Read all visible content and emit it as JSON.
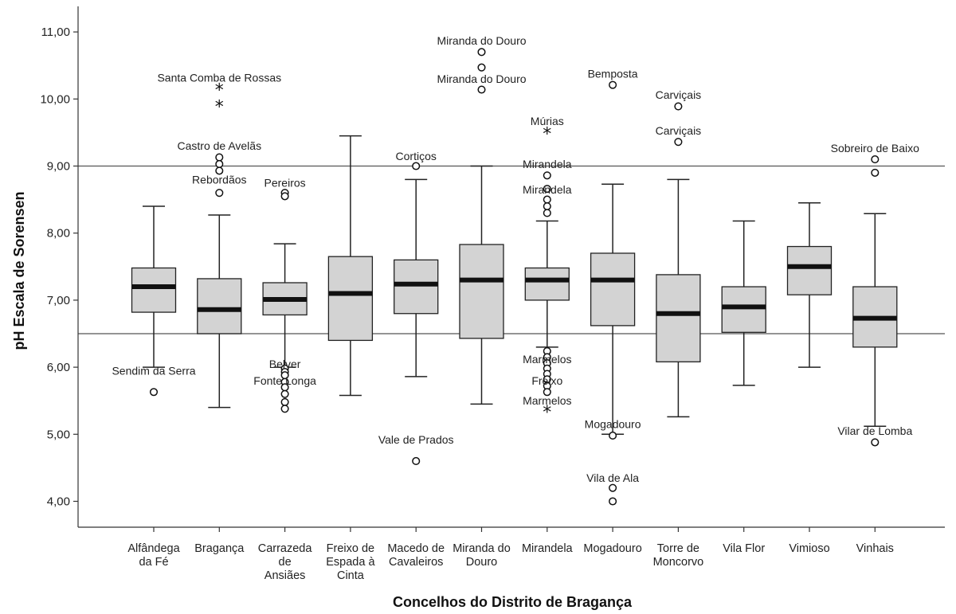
{
  "chart_data": {
    "type": "boxplot",
    "xlabel": "Concelhos do Distrito de Bragança",
    "ylabel": "pH Escala de Sorensen",
    "ylim": [
      3.5,
      11.4
    ],
    "yticks": [
      "4,00",
      "5,00",
      "6,00",
      "7,00",
      "8,00",
      "9,00",
      "10,00",
      "11,00"
    ],
    "reference_lines": [
      6.5,
      9.0
    ],
    "grid": false,
    "categories": [
      [
        "Alfândega",
        "da Fé"
      ],
      [
        "Bragança"
      ],
      [
        "Carrazeda",
        "de",
        "Ansiães"
      ],
      [
        "Freixo de",
        "Espada à",
        "Cinta"
      ],
      [
        "Macedo de",
        "Cavaleiros"
      ],
      [
        "Miranda do",
        "Douro"
      ],
      [
        "Mirandela"
      ],
      [
        "Mogadouro"
      ],
      [
        "Torre de",
        "Moncorvo"
      ],
      [
        "Vila Flor"
      ],
      [
        "Vimioso"
      ],
      [
        "Vinhais"
      ]
    ],
    "boxes": [
      {
        "min": 6.0,
        "q1": 6.82,
        "median": 7.2,
        "q3": 7.48,
        "max": 8.4
      },
      {
        "min": 5.4,
        "q1": 6.5,
        "median": 6.86,
        "q3": 7.32,
        "max": 8.27
      },
      {
        "min": 6.0,
        "q1": 6.78,
        "median": 7.01,
        "q3": 7.26,
        "max": 7.84
      },
      {
        "min": 5.58,
        "q1": 6.4,
        "median": 7.1,
        "q3": 7.65,
        "max": 9.45
      },
      {
        "min": 5.86,
        "q1": 6.8,
        "median": 7.24,
        "q3": 7.6,
        "max": 8.8
      },
      {
        "min": 5.45,
        "q1": 6.43,
        "median": 7.3,
        "q3": 7.83,
        "max": 9.0
      },
      {
        "min": 6.3,
        "q1": 7.0,
        "median": 7.3,
        "q3": 7.48,
        "max": 8.18
      },
      {
        "min": 5.0,
        "q1": 6.62,
        "median": 7.3,
        "q3": 7.7,
        "max": 8.73
      },
      {
        "min": 5.26,
        "q1": 6.08,
        "median": 6.8,
        "q3": 7.38,
        "max": 8.8
      },
      {
        "min": 5.73,
        "q1": 6.52,
        "median": 6.9,
        "q3": 7.2,
        "max": 8.18
      },
      {
        "min": 6.0,
        "q1": 7.08,
        "median": 7.5,
        "q3": 7.8,
        "max": 8.45
      },
      {
        "min": 5.12,
        "q1": 6.3,
        "median": 6.73,
        "q3": 7.2,
        "max": 8.29
      }
    ],
    "outliers": [
      {
        "cat": 0,
        "v": 5.63,
        "m": "o"
      },
      {
        "cat": 1,
        "v": 10.15,
        "m": "*"
      },
      {
        "cat": 1,
        "v": 9.9,
        "m": "*"
      },
      {
        "cat": 1,
        "v": 9.13,
        "m": "o"
      },
      {
        "cat": 1,
        "v": 9.03,
        "m": "o"
      },
      {
        "cat": 1,
        "v": 8.93,
        "m": "o"
      },
      {
        "cat": 1,
        "v": 8.6,
        "m": "o"
      },
      {
        "cat": 2,
        "v": 8.6,
        "m": "o"
      },
      {
        "cat": 2,
        "v": 8.55,
        "m": "o"
      },
      {
        "cat": 2,
        "v": 5.98,
        "m": "o"
      },
      {
        "cat": 2,
        "v": 5.93,
        "m": "o"
      },
      {
        "cat": 2,
        "v": 5.88,
        "m": "o"
      },
      {
        "cat": 2,
        "v": 5.78,
        "m": "o"
      },
      {
        "cat": 2,
        "v": 5.7,
        "m": "o"
      },
      {
        "cat": 2,
        "v": 5.6,
        "m": "o"
      },
      {
        "cat": 2,
        "v": 5.48,
        "m": "o"
      },
      {
        "cat": 2,
        "v": 5.38,
        "m": "o"
      },
      {
        "cat": 4,
        "v": 9.0,
        "m": "o"
      },
      {
        "cat": 4,
        "v": 4.6,
        "m": "o"
      },
      {
        "cat": 5,
        "v": 10.7,
        "m": "o"
      },
      {
        "cat": 5,
        "v": 10.47,
        "m": "o"
      },
      {
        "cat": 5,
        "v": 10.14,
        "m": "o"
      },
      {
        "cat": 6,
        "v": 9.5,
        "m": "*"
      },
      {
        "cat": 6,
        "v": 8.86,
        "m": "o"
      },
      {
        "cat": 6,
        "v": 8.66,
        "m": "o"
      },
      {
        "cat": 6,
        "v": 8.5,
        "m": "o"
      },
      {
        "cat": 6,
        "v": 8.4,
        "m": "o"
      },
      {
        "cat": 6,
        "v": 8.3,
        "m": "o"
      },
      {
        "cat": 6,
        "v": 6.24,
        "m": "o"
      },
      {
        "cat": 6,
        "v": 6.15,
        "m": "o"
      },
      {
        "cat": 6,
        "v": 6.06,
        "m": "o"
      },
      {
        "cat": 6,
        "v": 5.98,
        "m": "o"
      },
      {
        "cat": 6,
        "v": 5.9,
        "m": "o"
      },
      {
        "cat": 6,
        "v": 5.82,
        "m": "o"
      },
      {
        "cat": 6,
        "v": 5.72,
        "m": "o"
      },
      {
        "cat": 6,
        "v": 5.63,
        "m": "o"
      },
      {
        "cat": 6,
        "v": 5.35,
        "m": "*"
      },
      {
        "cat": 7,
        "v": 10.21,
        "m": "o"
      },
      {
        "cat": 7,
        "v": 4.98,
        "m": "o"
      },
      {
        "cat": 7,
        "v": 4.2,
        "m": "o"
      },
      {
        "cat": 7,
        "v": 4.0,
        "m": "o"
      },
      {
        "cat": 8,
        "v": 9.89,
        "m": "o"
      },
      {
        "cat": 8,
        "v": 9.36,
        "m": "o"
      },
      {
        "cat": 11,
        "v": 9.1,
        "m": "o"
      },
      {
        "cat": 11,
        "v": 8.9,
        "m": "o"
      },
      {
        "cat": 11,
        "v": 4.88,
        "m": "o"
      }
    ],
    "outlier_labels": [
      {
        "cat": 0,
        "v": 5.95,
        "text": "Sendim da Serra"
      },
      {
        "cat": 1,
        "v": 10.32,
        "text": "Santa Comba de Rossas"
      },
      {
        "cat": 1,
        "v": 9.3,
        "text": "Castro de Avelãs"
      },
      {
        "cat": 1,
        "v": 8.8,
        "text": "Rebordãos"
      },
      {
        "cat": 2,
        "v": 8.75,
        "text": "Pereiros"
      },
      {
        "cat": 2,
        "v": 6.05,
        "text": "Belver"
      },
      {
        "cat": 2,
        "v": 5.8,
        "text": "Fonte Longa"
      },
      {
        "cat": 4,
        "v": 9.15,
        "text": "Cortiços"
      },
      {
        "cat": 4,
        "v": 4.92,
        "text": "Vale de Prados"
      },
      {
        "cat": 5,
        "v": 10.87,
        "text": "Miranda do Douro"
      },
      {
        "cat": 5,
        "v": 10.3,
        "text": "Miranda do Douro"
      },
      {
        "cat": 6,
        "v": 9.67,
        "text": "Múrias"
      },
      {
        "cat": 6,
        "v": 9.03,
        "text": "Mirandela"
      },
      {
        "cat": 6,
        "v": 8.65,
        "text": "Mirandela"
      },
      {
        "cat": 6,
        "v": 6.12,
        "text": "Marmelos"
      },
      {
        "cat": 6,
        "v": 5.8,
        "text": "Freixo"
      },
      {
        "cat": 6,
        "v": 5.5,
        "text": "Marmelos"
      },
      {
        "cat": 7,
        "v": 10.38,
        "text": "Bemposta"
      },
      {
        "cat": 7,
        "v": 5.15,
        "text": "Mogadouro"
      },
      {
        "cat": 7,
        "v": 4.35,
        "text": "Vila de Ala"
      },
      {
        "cat": 8,
        "v": 10.06,
        "text": "Carviçais"
      },
      {
        "cat": 8,
        "v": 9.53,
        "text": "Carviçais"
      },
      {
        "cat": 11,
        "v": 9.27,
        "text": "Sobreiro de Baixo"
      },
      {
        "cat": 11,
        "v": 5.05,
        "text": "Vilar de Lomba"
      }
    ],
    "colors": {
      "box_fill": "#d3d3d3",
      "stroke": "#222222",
      "median": "#111111",
      "reference": "#555555"
    }
  }
}
